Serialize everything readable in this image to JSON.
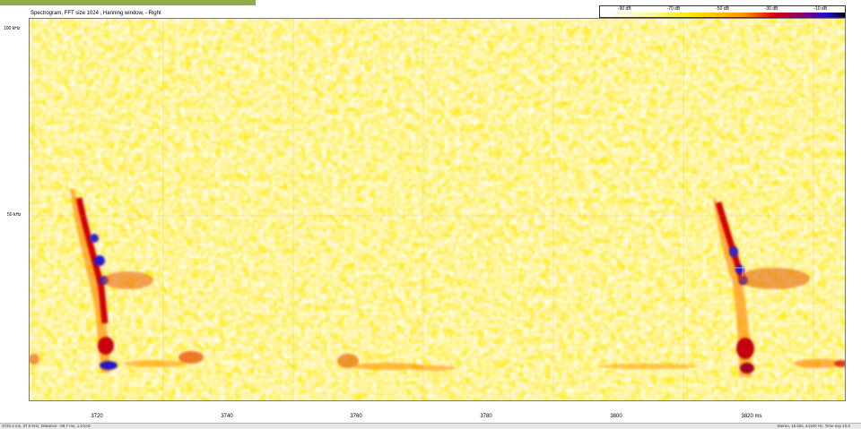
{
  "window": {
    "title": "Spectrogram, FFT size 1024 , Hanning window,  - Right"
  },
  "legend": {
    "labels": [
      "-90 dB",
      "-70 dB",
      "-50 dB",
      "-30 dB",
      "-10 dB"
    ]
  },
  "axes": {
    "y_labels": [
      "100 kHz",
      "50 kHz"
    ],
    "x_ticks": [
      "3720",
      "3740",
      "3760",
      "3780",
      "3800",
      "3820 ms"
    ]
  },
  "statusbar": {
    "left": "3720.4 ms, 37.0 kHz, Distance: -98.7 ms, 1.0 kHz",
    "right": "Stereo, 16 bits, 44100 Hz, Time exp 10.0"
  },
  "colors": {
    "background": "#fff6a0",
    "low": "#ffe44d",
    "mid": "#ff9a00",
    "high": "#d80000",
    "peak": "#2020d0",
    "accent": "#8fae45"
  }
}
